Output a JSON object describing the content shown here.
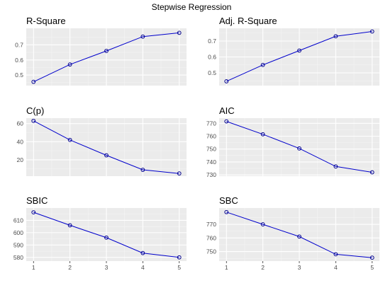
{
  "title": "Stepwise Regression",
  "chart_data": [
    {
      "type": "line",
      "title": "R-Square",
      "x": [
        1,
        2,
        3,
        4,
        5
      ],
      "y": [
        0.455,
        0.57,
        0.66,
        0.755,
        0.78
      ],
      "ylim": [
        0.43,
        0.81
      ],
      "yticks": [
        0.5,
        0.6,
        0.7
      ],
      "ytick_labels": [
        "0.5",
        "0.6",
        "0.7"
      ],
      "xticks": [
        1,
        2,
        3,
        4,
        5
      ],
      "show_x_labels": false,
      "grid": true
    },
    {
      "type": "line",
      "title": "Adj. R-Square",
      "x": [
        1,
        2,
        3,
        4,
        5
      ],
      "y": [
        0.447,
        0.55,
        0.64,
        0.73,
        0.76
      ],
      "ylim": [
        0.42,
        0.78
      ],
      "yticks": [
        0.5,
        0.6,
        0.7
      ],
      "ytick_labels": [
        "0.5",
        "0.6",
        "0.7"
      ],
      "xticks": [
        1,
        2,
        3,
        4,
        5
      ],
      "show_x_labels": false,
      "grid": true
    },
    {
      "type": "line",
      "title": "C(p)",
      "x": [
        1,
        2,
        3,
        4,
        5
      ],
      "y": [
        63,
        42,
        25,
        9,
        5
      ],
      "ylim": [
        2,
        66
      ],
      "yticks": [
        20,
        40,
        60
      ],
      "ytick_labels": [
        "20",
        "40",
        "60"
      ],
      "xticks": [
        1,
        2,
        3,
        4,
        5
      ],
      "show_x_labels": false,
      "grid": true
    },
    {
      "type": "line",
      "title": "AIC",
      "x": [
        1,
        2,
        3,
        4,
        5
      ],
      "y": [
        771.5,
        761.5,
        750.5,
        736.5,
        732
      ],
      "ylim": [
        729,
        774
      ],
      "yticks": [
        730,
        740,
        750,
        760,
        770
      ],
      "ytick_labels": [
        "730",
        "740",
        "750",
        "760",
        "770"
      ],
      "xticks": [
        1,
        2,
        3,
        4,
        5
      ],
      "show_x_labels": false,
      "grid": true
    },
    {
      "type": "line",
      "title": "SBIC",
      "x": [
        1,
        2,
        3,
        4,
        5
      ],
      "y": [
        616.5,
        606,
        596,
        583.5,
        580
      ],
      "ylim": [
        577,
        620
      ],
      "yticks": [
        580,
        590,
        600,
        610
      ],
      "ytick_labels": [
        "580",
        "590",
        "600",
        "610"
      ],
      "xticks": [
        1,
        2,
        3,
        4,
        5
      ],
      "xtick_labels": [
        "1",
        "2",
        "3",
        "4",
        "5"
      ],
      "show_x_labels": true,
      "grid": true
    },
    {
      "type": "line",
      "title": "SBC",
      "x": [
        1,
        2,
        3,
        4,
        5
      ],
      "y": [
        779,
        770,
        761,
        748,
        745.5
      ],
      "ylim": [
        743,
        782
      ],
      "yticks": [
        750,
        760,
        770
      ],
      "ytick_labels": [
        "750",
        "760",
        "770"
      ],
      "xticks": [
        1,
        2,
        3,
        4,
        5
      ],
      "xtick_labels": [
        "1",
        "2",
        "3",
        "4",
        "5"
      ],
      "show_x_labels": true,
      "grid": true
    }
  ],
  "colors": {
    "panel_background": "#ebebeb",
    "grid_major": "#ffffff",
    "grid_minor": "#f4f4f4",
    "line": "#0000cc",
    "marker": "#00008b",
    "axis_text": "#4d4d4d",
    "title_text": "#000000"
  }
}
